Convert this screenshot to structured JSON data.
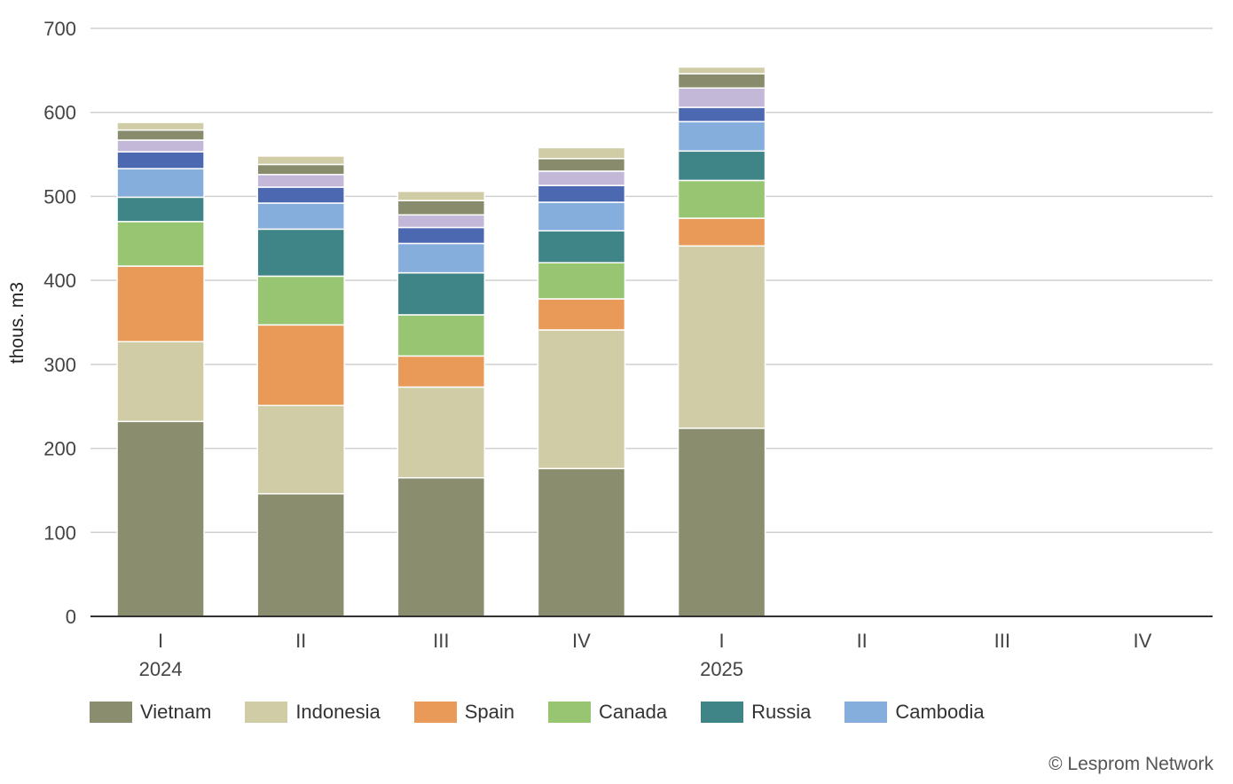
{
  "chart_data": {
    "type": "bar",
    "stacked": true,
    "ylabel": "thous. m3",
    "ylim": [
      0,
      700
    ],
    "yticks": [
      0,
      100,
      200,
      300,
      400,
      500,
      600,
      700
    ],
    "grid": true,
    "legend_position": "bottom-left",
    "categories": [
      "I",
      "II",
      "III",
      "IV",
      "I",
      "II",
      "III",
      "IV"
    ],
    "year_labels": [
      {
        "label": "2024",
        "at": 0
      },
      {
        "label": "2025",
        "at": 4
      }
    ],
    "series": [
      {
        "name": "Vietnam",
        "color": "#8a8d6e",
        "values": [
          232,
          146,
          165,
          176,
          224,
          null,
          null,
          null
        ]
      },
      {
        "name": "Indonesia",
        "color": "#cfcca6",
        "values": [
          95,
          105,
          108,
          165,
          217,
          null,
          null,
          null
        ]
      },
      {
        "name": "Spain",
        "color": "#ea9a58",
        "values": [
          90,
          96,
          37,
          37,
          33,
          null,
          null,
          null
        ]
      },
      {
        "name": "Canada",
        "color": "#98c572",
        "values": [
          53,
          58,
          49,
          43,
          45,
          null,
          null,
          null
        ]
      },
      {
        "name": "Russia",
        "color": "#3f8588",
        "values": [
          29,
          56,
          50,
          38,
          35,
          null,
          null,
          null
        ]
      },
      {
        "name": "Cambodia",
        "color": "#86aedc",
        "values": [
          34,
          31,
          35,
          34,
          35,
          null,
          null,
          null
        ]
      },
      {
        "color": "#4c68b0",
        "values": [
          20,
          19,
          19,
          20,
          17,
          null,
          null,
          null
        ]
      },
      {
        "color": "#c4b8d8",
        "values": [
          14,
          15,
          15,
          17,
          23,
          null,
          null,
          null
        ]
      },
      {
        "color": "#888c6c",
        "values": [
          12,
          12,
          17,
          15,
          17,
          null,
          null,
          null
        ]
      },
      {
        "color": "#cfcca6",
        "values": [
          9,
          10,
          11,
          13,
          8,
          null,
          null,
          null
        ]
      }
    ]
  },
  "credit": "© Lesprom Network"
}
